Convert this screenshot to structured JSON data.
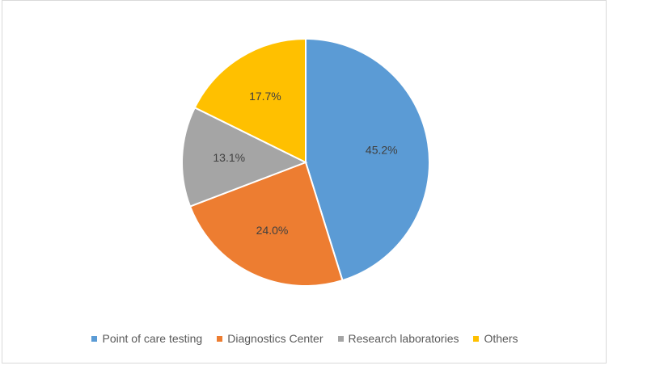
{
  "chart_data": {
    "type": "pie",
    "title": "",
    "legend_position": "bottom",
    "slices": [
      {
        "name": "Point of care testing",
        "value": 45.2,
        "label": "45.2%",
        "color": "#5b9bd5"
      },
      {
        "name": "Diagnostics Center",
        "value": 24.0,
        "label": "24.0%",
        "color": "#ed7d31"
      },
      {
        "name": "Research laboratories",
        "value": 13.1,
        "label": "13.1%",
        "color": "#a5a5a5"
      },
      {
        "name": "Others",
        "value": 17.7,
        "label": "17.7%",
        "color": "#ffc000"
      }
    ]
  }
}
